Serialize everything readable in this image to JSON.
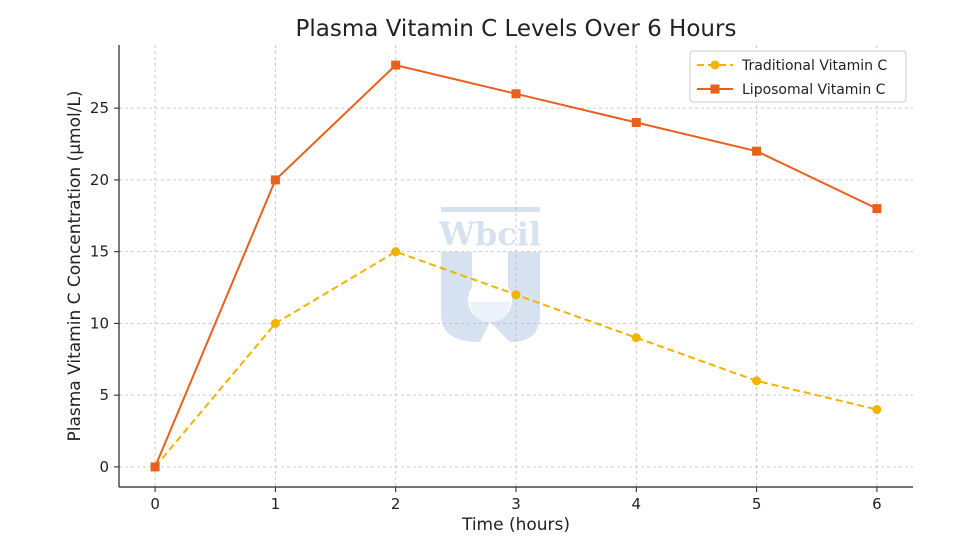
{
  "chart_data": {
    "type": "line",
    "title": "Plasma Vitamin C Levels Over 6 Hours",
    "xlabel": "Time (hours)",
    "ylabel": "Plasma Vitamin C Concentration (µmol/L)",
    "x": [
      0,
      1,
      2,
      3,
      4,
      5,
      6
    ],
    "xlim": [
      -0.3,
      6.3
    ],
    "ylim": [
      -1.4,
      29.4
    ],
    "xticks": [
      0,
      1,
      2,
      3,
      4,
      5,
      6
    ],
    "yticks": [
      0,
      5,
      10,
      15,
      20,
      25
    ],
    "grid": true,
    "legend_placement": "top-right",
    "series": [
      {
        "name": "Traditional Vitamin C",
        "values": [
          0,
          10,
          15,
          12,
          9,
          6,
          4
        ],
        "color": "#F2B200",
        "line_style": "dashed",
        "marker": "circle"
      },
      {
        "name": "Liposomal Vitamin C",
        "values": [
          0,
          20,
          28,
          26,
          24,
          22,
          18
        ],
        "color": "#E8601C",
        "line_style": "solid",
        "marker": "square"
      }
    ]
  },
  "watermark": {
    "text": "Wbcil",
    "color": "#C9D9EC"
  }
}
